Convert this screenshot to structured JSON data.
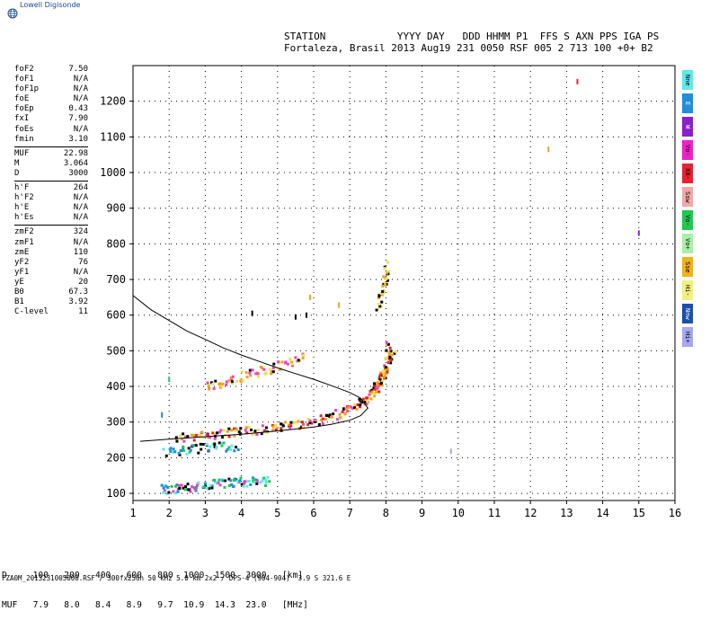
{
  "brand": {
    "label": "Lowell Digisonde",
    "icon": "globe-icon"
  },
  "header": {
    "line1": "STATION            YYYY DAY   DDD HHMM P1  FFS S AXN PPS IGA PS",
    "line2": "Fortaleza, Brasil 2013 Aug19 231 0050 RSF 005 2 713 100 +0+ B2"
  },
  "params": [
    [
      [
        "foF2",
        "7.50"
      ],
      [
        "foF1",
        "N/A"
      ],
      [
        "foF1p",
        "N/A"
      ],
      [
        "foE",
        "N/A"
      ],
      [
        "foEp",
        "0.43"
      ],
      [
        "fxI",
        "7.90"
      ],
      [
        "foEs",
        "N/A"
      ],
      [
        "fmin",
        "3.10"
      ]
    ],
    [
      [
        "MUF",
        "22.98"
      ],
      [
        "M",
        "3.064"
      ],
      [
        "D",
        "3000"
      ]
    ],
    [
      [
        "h'F",
        "264"
      ],
      [
        "h'F2",
        "N/A"
      ],
      [
        "h'E",
        "N/A"
      ],
      [
        "h'Es",
        "N/A"
      ]
    ],
    [
      [
        "zmF2",
        "324"
      ],
      [
        "zmF1",
        "N/A"
      ],
      [
        "zmE",
        "110"
      ],
      [
        "yF2",
        "76"
      ],
      [
        "yF1",
        "N/A"
      ],
      [
        "yE",
        "20"
      ],
      [
        "B0",
        "67.3"
      ],
      [
        "B1",
        "3.92"
      ],
      [
        "C-level",
        "11"
      ]
    ]
  ],
  "legend": [
    {
      "label": "Nne",
      "color": "#5ee8e8"
    },
    {
      "label": "E",
      "color": "#1e8fd8"
    },
    {
      "label": "W",
      "color": "#8a20c8"
    },
    {
      "label": "Vo-",
      "color": "#f020c8"
    },
    {
      "label": "X0-",
      "color": "#e82030"
    },
    {
      "label": "Ssw",
      "color": "#f0a8a8"
    },
    {
      "label": "Vo-",
      "color": "#20c850"
    },
    {
      "label": "Vo+",
      "color": "#a8f0a8"
    },
    {
      "label": "Sse",
      "color": "#f0b020"
    },
    {
      "label": "Hi-",
      "color": "#f0f080"
    },
    {
      "label": "Nnw",
      "color": "#1a50a8"
    },
    {
      "label": "Hi+",
      "color": "#a8a8f0"
    }
  ],
  "muf_table": {
    "row1": "D     100   200   400   600   800  1000  1500  3000   [km]",
    "row2": "MUF   7.9   8.0   8.4   8.9   9.7  10.9  14.3  23.0   [MHz]"
  },
  "footer": "FZA0M_2013231005000.RSF / 300fx256h 50 kHz 5.0 km 2x2 / DPS-4 (904-904)  3.9 S 321.6 E",
  "chart_data": {
    "type": "scatter",
    "title": "",
    "xlabel": "",
    "ylabel": "",
    "xlim": [
      1,
      16
    ],
    "ylim": [
      80,
      1300
    ],
    "xticks": [
      1,
      2,
      3,
      4,
      5,
      6,
      7,
      8,
      9,
      10,
      11,
      12,
      13,
      14,
      15,
      16
    ],
    "yticks": [
      100,
      200,
      300,
      400,
      500,
      600,
      700,
      800,
      900,
      1000,
      1100,
      1200
    ],
    "grid": true,
    "profile_curve": {
      "f": [
        1.0,
        1.5,
        2.0,
        2.5,
        3.0,
        3.5,
        4.0,
        4.5,
        5.0,
        5.5,
        6.0,
        6.5,
        7.0,
        7.3,
        7.5,
        7.3,
        7.0,
        6.5,
        6.0,
        5.0,
        4.0,
        3.0,
        2.0,
        1.2
      ],
      "h": [
        655,
        615,
        585,
        555,
        532,
        508,
        488,
        470,
        452,
        436,
        420,
        402,
        383,
        367,
        339,
        318,
        305,
        294,
        286,
        275,
        266,
        259,
        252,
        246
      ]
    },
    "traces": {
      "o_F": {
        "f": [
          2.2,
          2.6,
          3.0,
          3.4,
          3.8,
          4.2,
          4.6,
          5.0,
          5.4,
          5.8,
          6.2,
          6.6,
          6.9,
          7.2,
          7.4,
          7.6,
          7.7,
          7.8,
          7.9,
          8.0,
          8.05,
          8.1
        ],
        "h": [
          255,
          258,
          262,
          266,
          270,
          274,
          279,
          284,
          290,
          298,
          305,
          318,
          330,
          345,
          358,
          372,
          388,
          405,
          425,
          450,
          480,
          520
        ]
      },
      "x_F": {
        "f": [
          7.7,
          7.85,
          8.0,
          8.1,
          8.2
        ],
        "h": [
          400,
          420,
          440,
          470,
          500
        ]
      },
      "F_multiple": {
        "f": [
          3.0,
          3.4,
          3.8,
          4.2,
          4.6,
          5.0,
          5.4,
          5.8
        ],
        "h": [
          398,
          408,
          420,
          432,
          442,
          455,
          470,
          492
        ]
      },
      "E_region": {
        "f": [
          1.8,
          2.1,
          2.4,
          2.7,
          3.0,
          3.3,
          3.6,
          3.9,
          4.2,
          4.5,
          4.8
        ],
        "h": [
          110,
          112,
          115,
          118,
          122,
          125,
          128,
          130,
          132,
          133,
          135
        ]
      },
      "Es_spread": {
        "f": [
          1.9,
          2.3,
          2.7,
          3.1,
          3.5,
          3.9
        ],
        "h": [
          215,
          220,
          225,
          228,
          230,
          232
        ]
      },
      "upper": {
        "f": [
          7.8,
          7.9,
          8.0,
          8.05
        ],
        "h": [
          620,
          660,
          700,
          740
        ]
      },
      "scattered": {
        "f": [
          13.3,
          12.5,
          15.0,
          9.8,
          2.0,
          1.8,
          5.9,
          6.7,
          4.3,
          5.5,
          5.8
        ],
        "h": [
          1255,
          1065,
          830,
          218,
          420,
          320,
          650,
          628,
          605,
          595,
          600
        ]
      }
    }
  }
}
